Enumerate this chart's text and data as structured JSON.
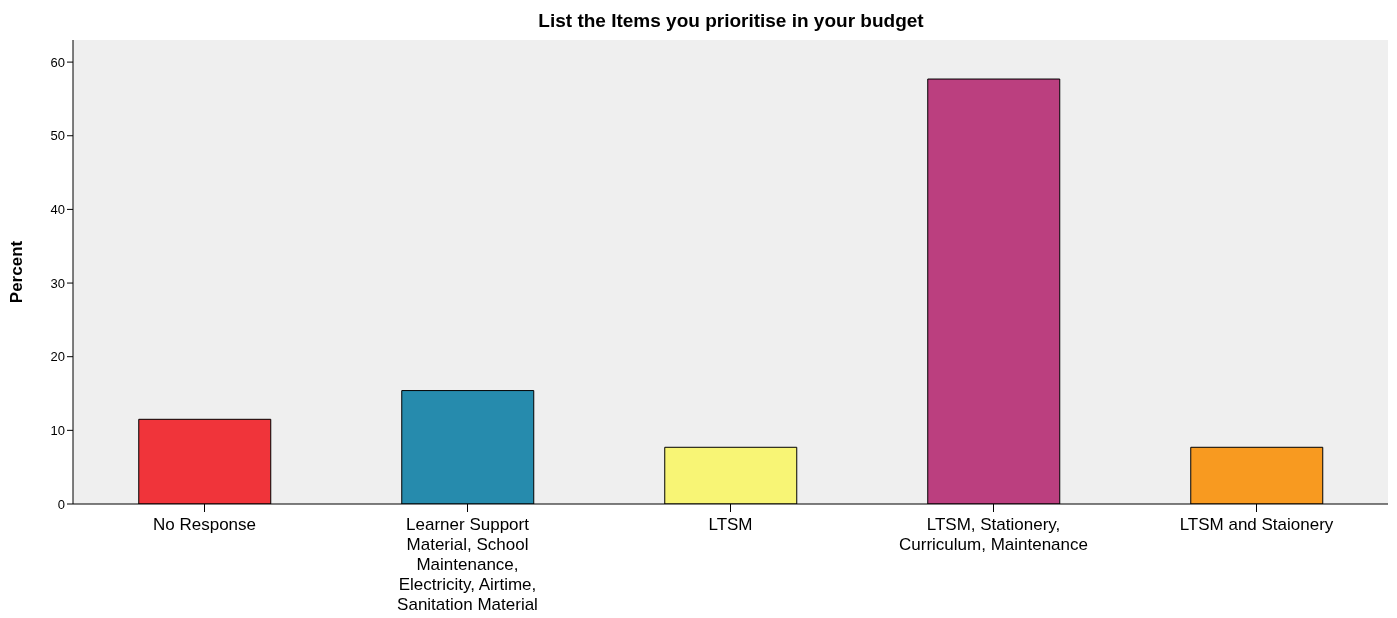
{
  "chart_data": {
    "type": "bar",
    "title": "List the Items you prioritise in your budget",
    "ylabel": "Percent",
    "categories": [
      "No Response",
      "Learner Support Material, School Maintenance, Electricity, Airtime, Sanitation Material",
      "LTSM",
      "LTSM, Stationery, Curriculum, Maintenance",
      "LTSM and Staionery"
    ],
    "values": [
      11.5,
      15.4,
      7.7,
      57.7,
      7.7
    ],
    "colors": [
      "#f0343a",
      "#268bad",
      "#f8f575",
      "#bb3f7f",
      "#f89a20"
    ],
    "ylim": [
      0,
      63
    ],
    "yticks": [
      0,
      10,
      20,
      30,
      40,
      50,
      60
    ]
  }
}
